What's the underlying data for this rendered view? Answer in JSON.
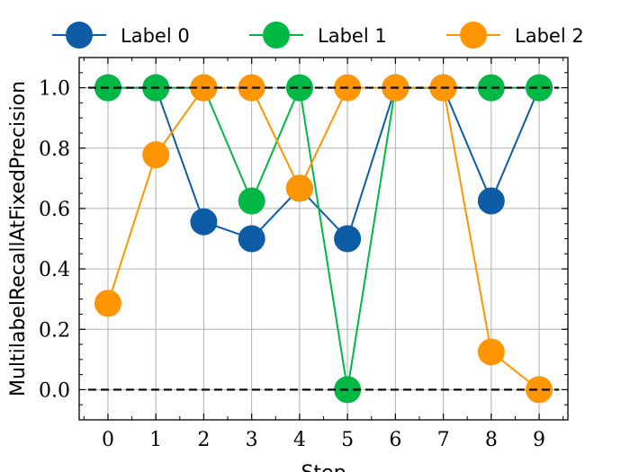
{
  "chart_data": {
    "type": "line",
    "xlabel": "Step",
    "ylabel": "MultilabelRecallAtFixedPrecision",
    "x": [
      0,
      1,
      2,
      3,
      4,
      5,
      6,
      7,
      8,
      9
    ],
    "xticks": [
      "0",
      "1",
      "2",
      "3",
      "4",
      "5",
      "6",
      "7",
      "8",
      "9"
    ],
    "yticks": [
      "0.0",
      "0.2",
      "0.4",
      "0.6",
      "0.8",
      "1.0"
    ],
    "xlim": [
      -0.6,
      9.6
    ],
    "ylim": [
      -0.1,
      1.1
    ],
    "grid": true,
    "legend": "top, outside, horizontal",
    "reference_lines": [
      0.0,
      1.0
    ],
    "series": [
      {
        "name": "Label 0",
        "color": "#0C5DA5",
        "values": [
          1.0,
          1.0,
          0.556,
          0.5,
          0.667,
          0.5,
          1.0,
          1.0,
          0.625,
          1.0
        ]
      },
      {
        "name": "Label 1",
        "color": "#00B945",
        "values": [
          1.0,
          1.0,
          1.0,
          0.625,
          1.0,
          0.0,
          1.0,
          1.0,
          1.0,
          1.0
        ]
      },
      {
        "name": "Label 2",
        "color": "#FF9500",
        "values": [
          0.286,
          0.778,
          1.0,
          1.0,
          0.667,
          1.0,
          1.0,
          1.0,
          0.125,
          0.0
        ]
      }
    ]
  }
}
